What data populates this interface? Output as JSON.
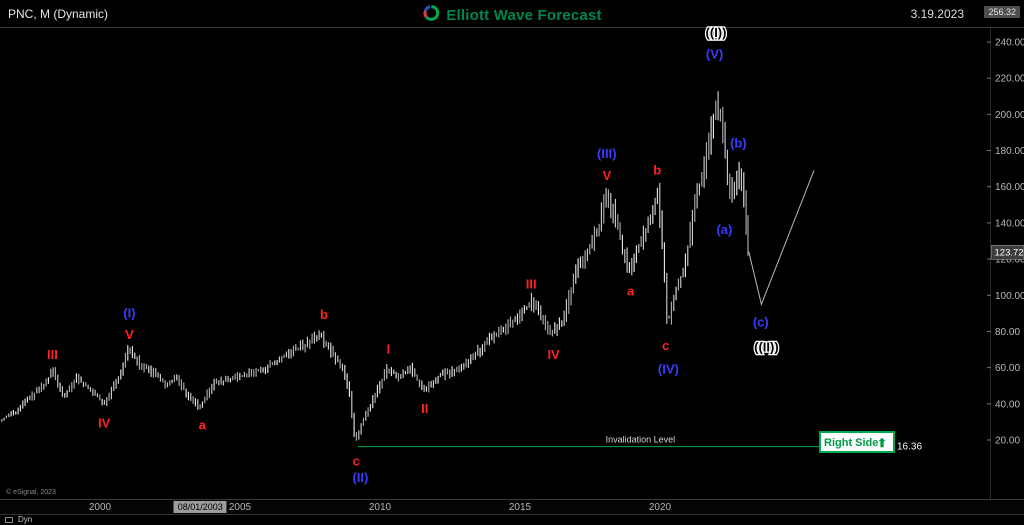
{
  "header": {
    "symbol_title": "PNC, M (Dynamic)",
    "brand": "Elliott Wave Forecast",
    "date": "3.19.2023",
    "max_badge": "256.32"
  },
  "badges": {
    "current_price": "123.72",
    "current_price_value": 123.72
  },
  "axes": {
    "price_ticks": [
      {
        "label": "240.00",
        "value": 240
      },
      {
        "label": "220.00",
        "value": 220
      },
      {
        "label": "200.00",
        "value": 200
      },
      {
        "label": "180.00",
        "value": 180
      },
      {
        "label": "160.00",
        "value": 160
      },
      {
        "label": "140.00",
        "value": 140
      },
      {
        "label": "120.00",
        "value": 120
      },
      {
        "label": "100.00",
        "value": 100
      },
      {
        "label": "80.00",
        "value": 80
      },
      {
        "label": "60.00",
        "value": 60
      },
      {
        "label": "40.00",
        "value": 40
      },
      {
        "label": "20.00",
        "value": 20
      }
    ],
    "time_ticks": [
      {
        "label": "2000",
        "year": 2000
      },
      {
        "label": "2005",
        "year": 2005
      },
      {
        "label": "2010",
        "year": 2010
      },
      {
        "label": "2015",
        "year": 2015
      },
      {
        "label": "2020",
        "year": 2020
      }
    ],
    "crosshair": {
      "label": "08/01/2003",
      "year": 2003.58
    }
  },
  "invalidation": {
    "label": "Invalidation Level",
    "price": 16.36,
    "price_label": "16.36",
    "start_year": 2009.2,
    "label_year": 2019.3
  },
  "right_side": {
    "label": "Right Side",
    "arrow": "⬆"
  },
  "footer": {
    "copyright": "© eSignal, 2023",
    "toolbar_label": "Dyn"
  },
  "colors": {
    "red_label": "#ff2222",
    "blue_label": "#3b3bff",
    "green": "#00a84f",
    "bar": "#d4d4d4",
    "brand_green": "#00864f"
  },
  "chart_data": {
    "type": "bar",
    "subtype": "monthly-ohlc",
    "title": "PNC Monthly Elliott Wave Count",
    "symbol": "PNC",
    "timeframe": "M",
    "x_range": [
      1996.4,
      2032
    ],
    "y_range": [
      0,
      256.32
    ],
    "last_close": 123.72,
    "price_keyframes": [
      [
        1996.45,
        31
      ],
      [
        1997.0,
        35
      ],
      [
        1997.5,
        43
      ],
      [
        1998.0,
        50
      ],
      [
        1998.35,
        58
      ],
      [
        1998.75,
        44
      ],
      [
        1999.2,
        54
      ],
      [
        1999.7,
        48
      ],
      [
        2000.2,
        40
      ],
      [
        2000.7,
        55
      ],
      [
        2001.05,
        70
      ],
      [
        2001.5,
        61
      ],
      [
        2002.0,
        57
      ],
      [
        2002.4,
        50
      ],
      [
        2002.75,
        55
      ],
      [
        2003.2,
        44
      ],
      [
        2003.6,
        38
      ],
      [
        2004.1,
        52
      ],
      [
        2004.6,
        53
      ],
      [
        2005.2,
        56
      ],
      [
        2005.8,
        59
      ],
      [
        2006.3,
        63
      ],
      [
        2006.9,
        69
      ],
      [
        2007.4,
        73
      ],
      [
        2007.9,
        78
      ],
      [
        2008.3,
        68
      ],
      [
        2008.7,
        60
      ],
      [
        2008.95,
        45
      ],
      [
        2009.15,
        18.5
      ],
      [
        2009.4,
        30
      ],
      [
        2009.8,
        43
      ],
      [
        2010.3,
        60
      ],
      [
        2010.7,
        54
      ],
      [
        2011.1,
        60
      ],
      [
        2011.6,
        47
      ],
      [
        2012.1,
        55
      ],
      [
        2012.6,
        58
      ],
      [
        2013.1,
        63
      ],
      [
        2013.6,
        70
      ],
      [
        2014.1,
        78
      ],
      [
        2014.6,
        83
      ],
      [
        2015.1,
        90
      ],
      [
        2015.45,
        97
      ],
      [
        2015.8,
        88
      ],
      [
        2016.15,
        79
      ],
      [
        2016.6,
        87
      ],
      [
        2017.0,
        112
      ],
      [
        2017.5,
        125
      ],
      [
        2017.9,
        140
      ],
      [
        2018.1,
        158
      ],
      [
        2018.4,
        145
      ],
      [
        2018.75,
        122
      ],
      [
        2018.95,
        113
      ],
      [
        2019.3,
        128
      ],
      [
        2019.7,
        142
      ],
      [
        2019.95,
        158
      ],
      [
        2020.15,
        120
      ],
      [
        2020.3,
        84
      ],
      [
        2020.6,
        102
      ],
      [
        2020.95,
        118
      ],
      [
        2021.3,
        152
      ],
      [
        2021.6,
        170
      ],
      [
        2021.85,
        192
      ],
      [
        2022.05,
        208
      ],
      [
        2022.25,
        193
      ],
      [
        2022.45,
        166
      ],
      [
        2022.6,
        153
      ],
      [
        2022.75,
        163
      ],
      [
        2022.9,
        171
      ],
      [
        2023.0,
        158
      ],
      [
        2023.1,
        146
      ],
      [
        2023.17,
        123.72
      ]
    ],
    "forecast_path": [
      [
        2023.17,
        124
      ],
      [
        2023.62,
        95
      ],
      [
        2025.5,
        169
      ]
    ],
    "annotations": [
      {
        "text": "III",
        "t": 1998.3,
        "p": 67,
        "color": "#ff2222"
      },
      {
        "text": "IV",
        "t": 2000.15,
        "p": 29,
        "color": "#ff2222"
      },
      {
        "text": "V",
        "t": 2001.05,
        "p": 78,
        "color": "#ff2222"
      },
      {
        "text": "a",
        "t": 2003.65,
        "p": 28,
        "color": "#ff2222"
      },
      {
        "text": "b",
        "t": 2008.0,
        "p": 89,
        "color": "#ff2222"
      },
      {
        "text": "c",
        "t": 2009.15,
        "p": 8,
        "color": "#ff2222"
      },
      {
        "text": "I",
        "t": 2010.3,
        "p": 70,
        "color": "#ff2222"
      },
      {
        "text": "II",
        "t": 2011.6,
        "p": 37,
        "color": "#ff2222"
      },
      {
        "text": "III",
        "t": 2015.4,
        "p": 106,
        "color": "#ff2222"
      },
      {
        "text": "IV",
        "t": 2016.2,
        "p": 67,
        "color": "#ff2222"
      },
      {
        "text": "V",
        "t": 2018.1,
        "p": 166,
        "color": "#ff2222"
      },
      {
        "text": "a",
        "t": 2018.95,
        "p": 102,
        "color": "#ff2222"
      },
      {
        "text": "b",
        "t": 2019.9,
        "p": 169,
        "color": "#ff2222"
      },
      {
        "text": "c",
        "t": 2020.2,
        "p": 72,
        "color": "#ff2222"
      },
      {
        "text": "(I)",
        "t": 2001.05,
        "p": 90,
        "color": "#3b3bff"
      },
      {
        "text": "(II)",
        "t": 2009.3,
        "p": -1,
        "color": "#3b3bff"
      },
      {
        "text": "(III)",
        "t": 2018.1,
        "p": 178,
        "color": "#3b3bff"
      },
      {
        "text": "(IV)",
        "t": 2020.3,
        "p": 59,
        "color": "#3b3bff"
      },
      {
        "text": "(V)",
        "t": 2021.95,
        "p": 233,
        "color": "#3b3bff"
      },
      {
        "text": "(a)",
        "t": 2022.3,
        "p": 136,
        "color": "#3b3bff"
      },
      {
        "text": "(b)",
        "t": 2022.8,
        "p": 184,
        "color": "#3b3bff"
      },
      {
        "text": "(c)",
        "t": 2023.6,
        "p": 85,
        "color": "#3b3bff"
      },
      {
        "text": "((I))",
        "t": 2022.0,
        "p": 245,
        "color": "#000000",
        "outline": true
      },
      {
        "text": "((II))",
        "t": 2023.8,
        "p": 71,
        "color": "#000000",
        "outline": true
      }
    ]
  }
}
